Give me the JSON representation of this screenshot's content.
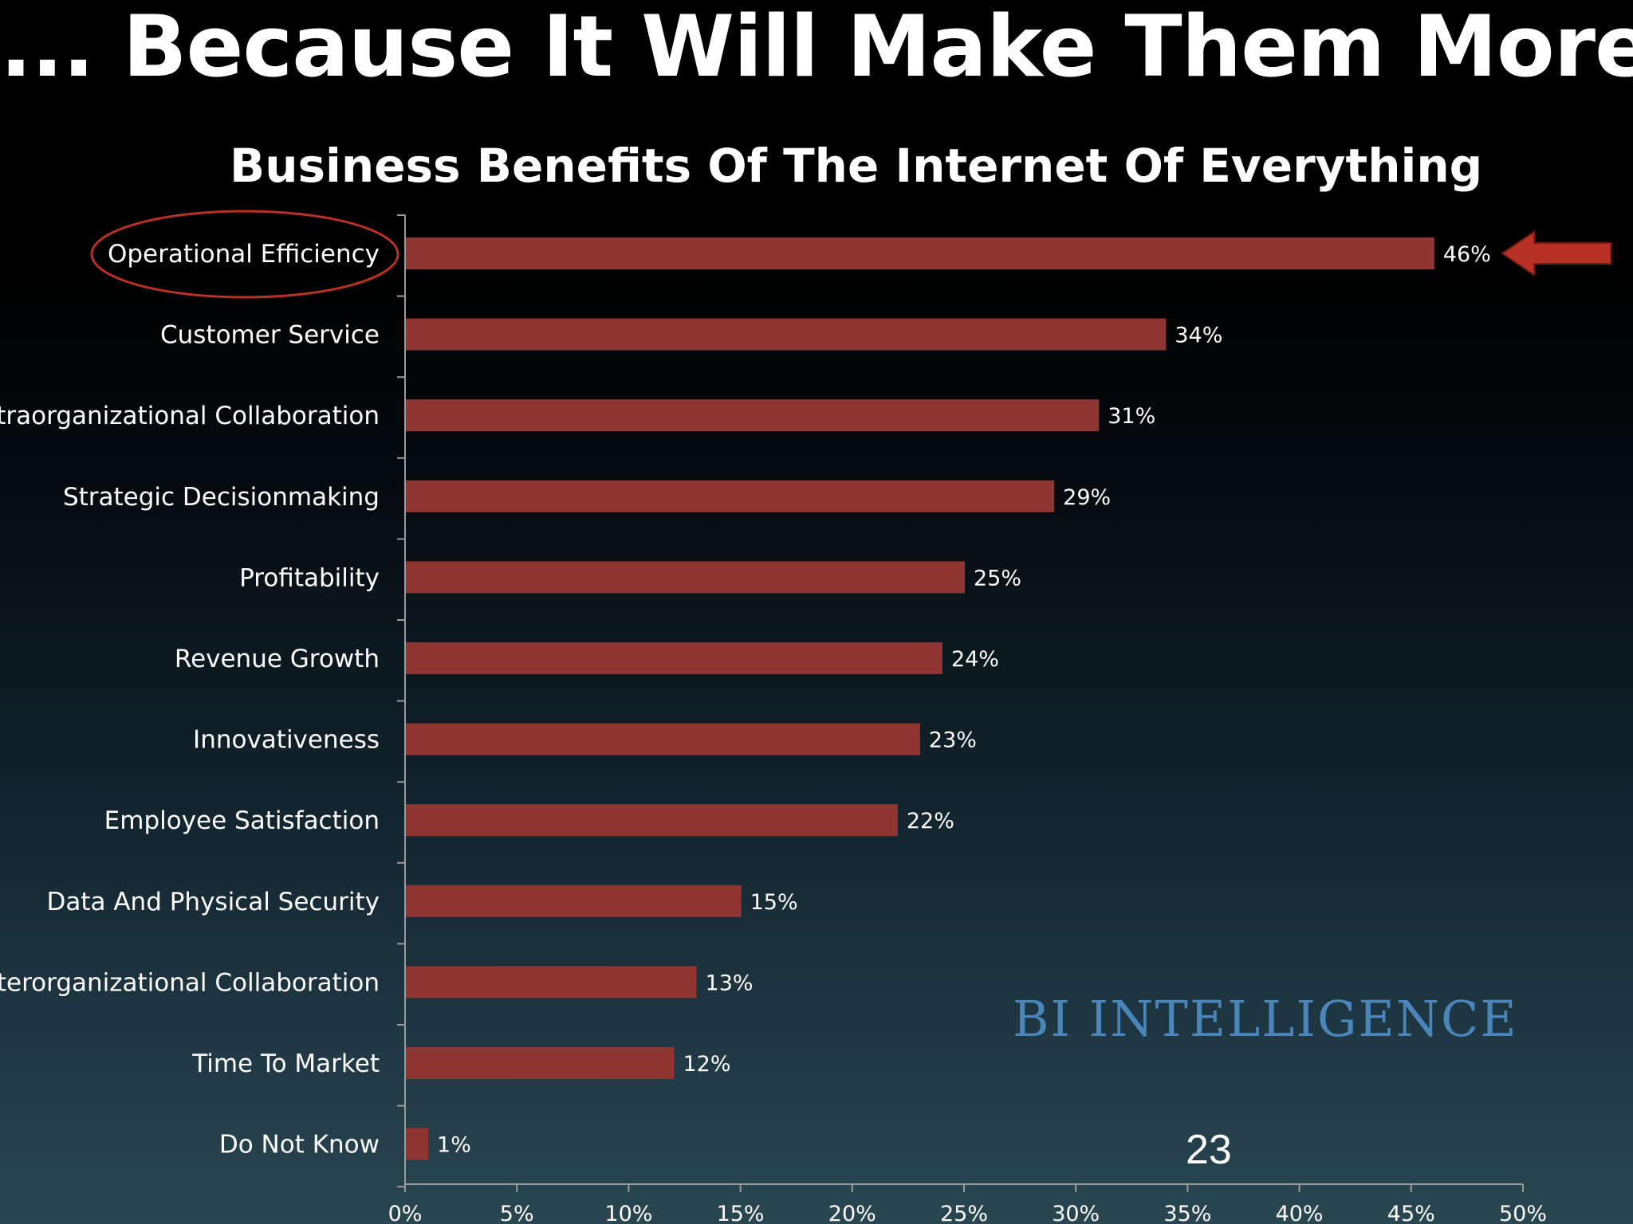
{
  "slide": {
    "title": "... Because It Will Make Them More Efficient",
    "page_number": "23",
    "watermark": "BI INTELLIGENCE"
  },
  "colors": {
    "bar": "#8f3532",
    "highlight": "#b83026",
    "text": "#ffffff",
    "watermark": "#4a86b9"
  },
  "chart_data": {
    "type": "bar",
    "orientation": "horizontal",
    "title": "Business Benefits Of The Internet Of Everything",
    "categories": [
      "Operational Efficiency",
      "Customer Service",
      "Intraorganizational Collaboration",
      "Strategic Decisionmaking",
      "Profitability",
      "Revenue Growth",
      "Innovativeness",
      "Employee Satisfaction",
      "Data And Physical Security",
      "Interorganizational Collaboration",
      "Time To Market",
      "Do Not Know"
    ],
    "values": [
      46,
      34,
      31,
      29,
      25,
      24,
      23,
      22,
      15,
      13,
      12,
      1
    ],
    "value_labels": [
      "46%",
      "34%",
      "31%",
      "29%",
      "25%",
      "24%",
      "23%",
      "22%",
      "15%",
      "13%",
      "12%",
      "1%"
    ],
    "xlim": [
      0,
      50
    ],
    "xticks": [
      0,
      5,
      10,
      15,
      20,
      25,
      30,
      35,
      40,
      45,
      50
    ],
    "xtick_labels": [
      "0%",
      "5%",
      "10%",
      "15%",
      "20%",
      "25%",
      "30%",
      "35%",
      "40%",
      "45%",
      "50%"
    ],
    "xlabel": "",
    "ylabel": "",
    "grid": false,
    "highlight": {
      "category": "Operational Efficiency",
      "circled": true,
      "arrow": true
    }
  }
}
